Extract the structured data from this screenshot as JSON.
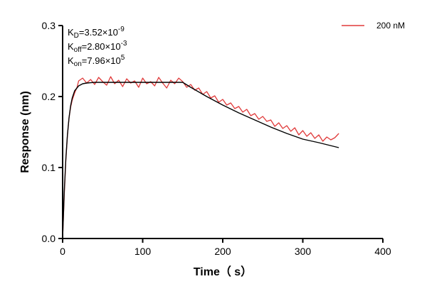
{
  "chart_data": {
    "type": "line",
    "title": "",
    "xlabel": "Time（ s）",
    "ylabel": "Response (nm)",
    "xlim": [
      0,
      400
    ],
    "ylim": [
      0.0,
      0.3
    ],
    "x_ticks": [
      0,
      100,
      200,
      300,
      400
    ],
    "x_tick_labels": [
      "0",
      "100",
      "200",
      "300",
      "400"
    ],
    "y_ticks": [
      0.0,
      0.1,
      0.2,
      0.3
    ],
    "y_tick_labels": [
      "0.0",
      "0.1",
      "0.2",
      "0.3"
    ],
    "grid": false,
    "legend_position": "top-right",
    "annotations": [
      {
        "base": "K",
        "sub": "D",
        "value": "=3.52×10",
        "sup": "-9"
      },
      {
        "base": "K",
        "sub": "off",
        "value": "=2.80×10",
        "sup": "-3"
      },
      {
        "base": "K",
        "sub": "on",
        "value": "=7.96×10",
        "sup": "5"
      }
    ],
    "series": [
      {
        "name": "200 nM",
        "color": "#e03a3a",
        "role": "measured",
        "x": [
          0,
          2,
          4,
          6,
          8,
          10,
          12,
          15,
          18,
          20,
          25,
          30,
          35,
          40,
          45,
          50,
          55,
          60,
          65,
          70,
          75,
          80,
          85,
          90,
          95,
          100,
          105,
          110,
          115,
          120,
          125,
          130,
          135,
          140,
          145,
          150,
          155,
          160,
          165,
          170,
          175,
          180,
          185,
          190,
          195,
          200,
          205,
          210,
          215,
          220,
          225,
          230,
          235,
          240,
          245,
          250,
          255,
          260,
          265,
          270,
          275,
          280,
          285,
          290,
          295,
          300,
          305,
          310,
          315,
          320,
          325,
          330,
          335,
          340,
          345
        ],
        "y": [
          0.0,
          0.06,
          0.11,
          0.145,
          0.17,
          0.185,
          0.195,
          0.205,
          0.213,
          0.222,
          0.226,
          0.219,
          0.224,
          0.217,
          0.227,
          0.221,
          0.216,
          0.228,
          0.218,
          0.223,
          0.214,
          0.225,
          0.219,
          0.222,
          0.213,
          0.226,
          0.218,
          0.221,
          0.215,
          0.227,
          0.219,
          0.212,
          0.223,
          0.218,
          0.226,
          0.221,
          0.213,
          0.217,
          0.209,
          0.212,
          0.203,
          0.207,
          0.198,
          0.201,
          0.192,
          0.196,
          0.188,
          0.191,
          0.183,
          0.186,
          0.178,
          0.182,
          0.173,
          0.176,
          0.168,
          0.172,
          0.165,
          0.167,
          0.158,
          0.163,
          0.155,
          0.159,
          0.151,
          0.156,
          0.146,
          0.152,
          0.144,
          0.149,
          0.141,
          0.146,
          0.137,
          0.143,
          0.139,
          0.142,
          0.148
        ]
      },
      {
        "name": "",
        "color": "#000000",
        "role": "fit",
        "x": [
          0,
          2,
          4,
          6,
          8,
          10,
          12,
          15,
          20,
          25,
          30,
          40,
          50,
          60,
          80,
          100,
          120,
          150,
          160,
          180,
          200,
          220,
          240,
          260,
          280,
          300,
          320,
          345
        ],
        "y": [
          0.0,
          0.065,
          0.112,
          0.146,
          0.17,
          0.187,
          0.198,
          0.208,
          0.215,
          0.218,
          0.219,
          0.22,
          0.22,
          0.22,
          0.22,
          0.22,
          0.22,
          0.22,
          0.213,
          0.2,
          0.188,
          0.177,
          0.167,
          0.157,
          0.148,
          0.14,
          0.135,
          0.128
        ]
      }
    ]
  }
}
